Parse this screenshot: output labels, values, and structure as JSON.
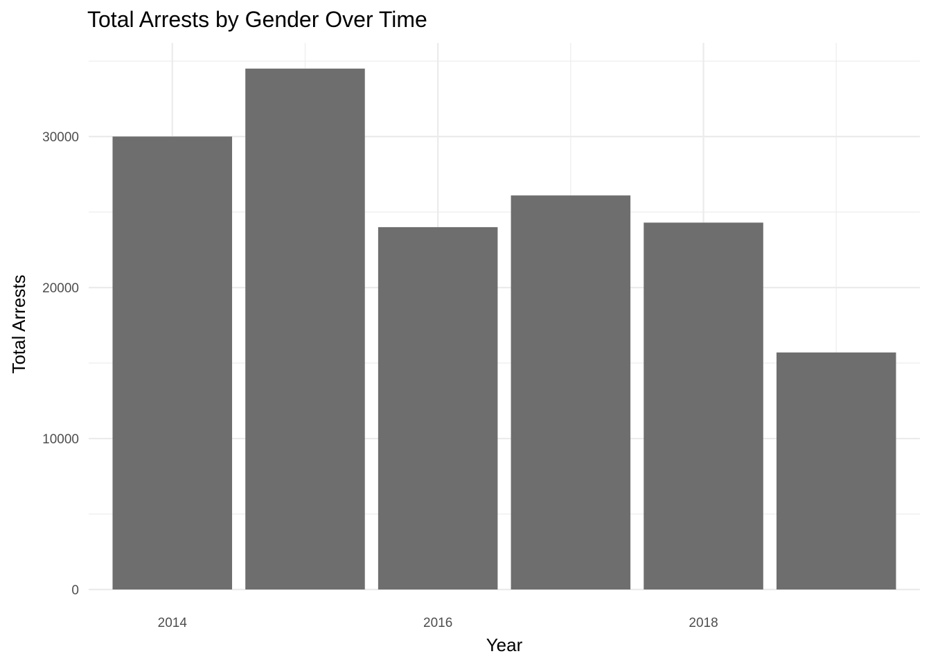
{
  "chart_data": {
    "type": "bar",
    "title": "Total Arrests by Gender Over Time",
    "xlabel": "Year",
    "ylabel": "Total Arrests",
    "x": [
      2014,
      2015,
      2016,
      2017,
      2018,
      2019
    ],
    "values": [
      30000,
      34500,
      24000,
      26100,
      24300,
      15700
    ],
    "xlim": [
      2013.37,
      2019.63
    ],
    "ylim": [
      0,
      36200
    ],
    "x_ticks": [
      "2014",
      "2016",
      "2018"
    ],
    "y_ticks": [
      "0",
      "10000",
      "20000",
      "30000"
    ],
    "bar_color": "#6e6e6e",
    "grid": true,
    "legend": "none"
  }
}
